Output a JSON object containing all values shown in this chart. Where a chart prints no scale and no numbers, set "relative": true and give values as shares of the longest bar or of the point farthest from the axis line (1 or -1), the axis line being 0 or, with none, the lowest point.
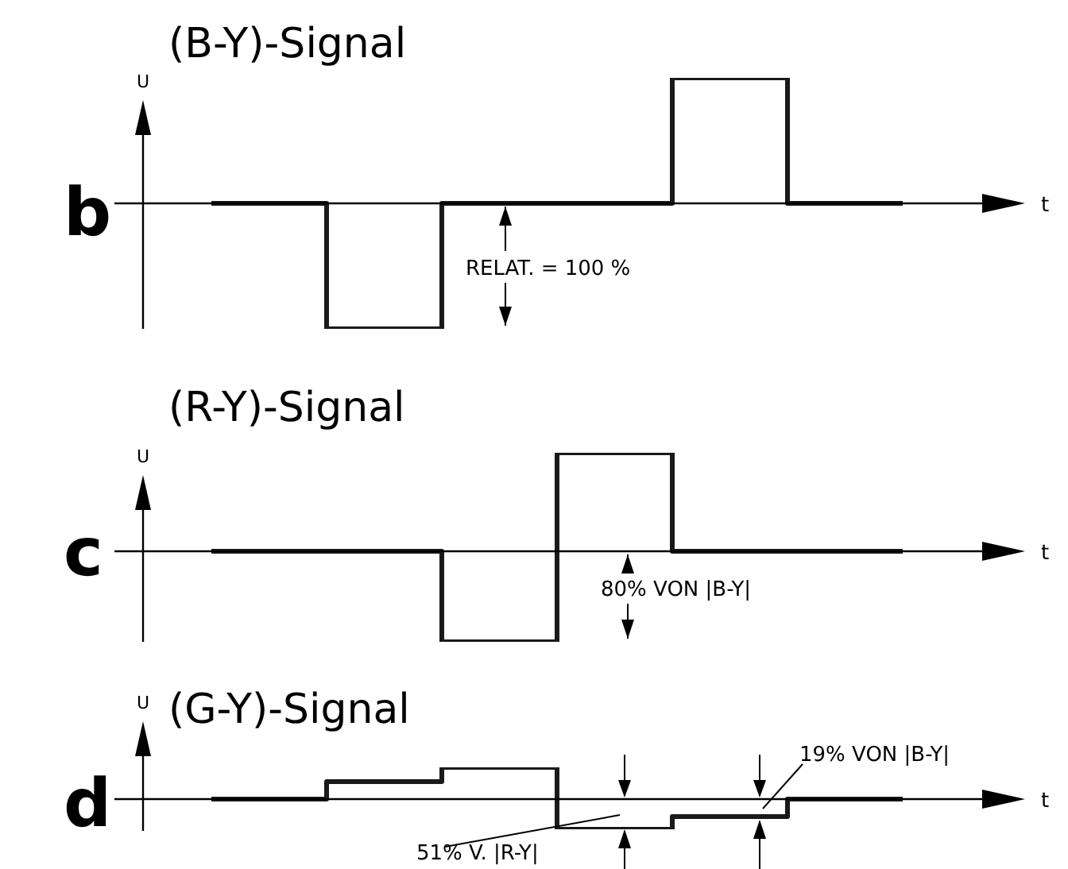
{
  "chart_data": [
    {
      "type": "step",
      "title": "(B-Y)-Signal",
      "xlabel": "t",
      "ylabel": "U",
      "relative": true,
      "categories": [
        null,
        null,
        null,
        null,
        null,
        null,
        null
      ],
      "color": "#1a1a1a",
      "values": [
        0,
        -1,
        0,
        0,
        1,
        0,
        0
      ],
      "annotations": [
        "b",
        "RELAT. = 100 %"
      ]
    },
    {
      "type": "step",
      "title": "(R-Y)-Signal",
      "xlabel": "t",
      "ylabel": "U",
      "relative": true,
      "categories": [
        null,
        null,
        null,
        null,
        null,
        null,
        null
      ],
      "color": "#1a1a1a",
      "values": [
        0,
        0,
        -0.92,
        1,
        0,
        0,
        0
      ],
      "annotations": [
        "c",
        "80% VON |B-Y|"
      ]
    },
    {
      "type": "step",
      "title": "(G-Y)-Signal",
      "xlabel": "t",
      "ylabel": "U",
      "relative": true,
      "categories": [
        null,
        null,
        null,
        null,
        null,
        null,
        null
      ],
      "color": "#1a1a1a",
      "values": [
        0,
        0.55,
        1,
        -0.95,
        -0.55,
        0,
        0
      ],
      "annotations": [
        "d",
        "19% VON |B-Y|",
        "51% V. |R-Y|"
      ]
    }
  ]
}
